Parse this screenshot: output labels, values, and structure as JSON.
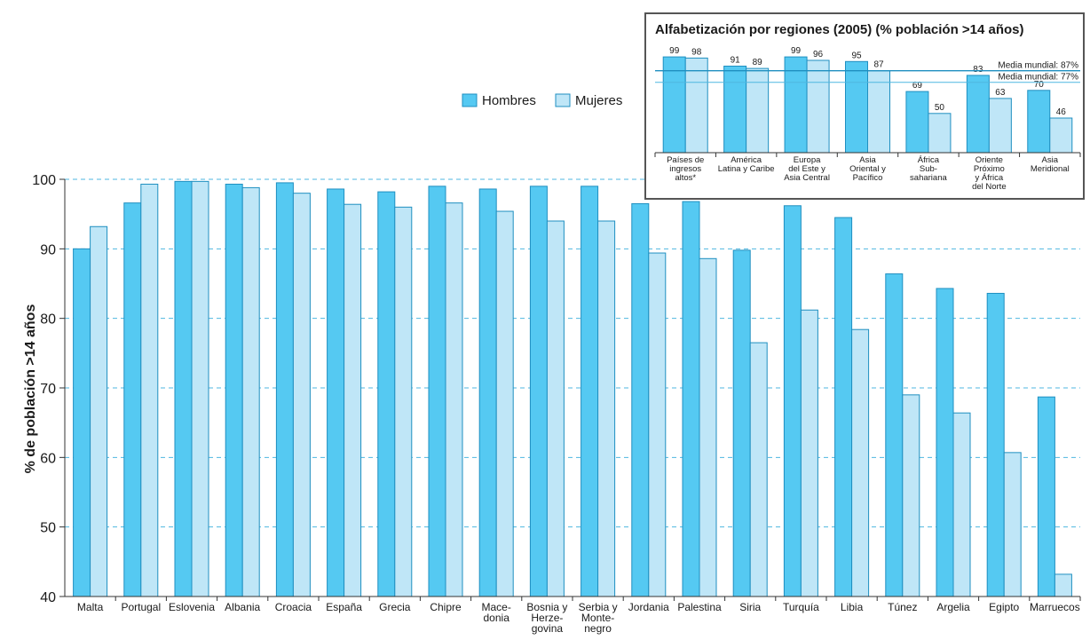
{
  "colors": {
    "men": "#55c9f2",
    "women": "#bfe6f7",
    "stroke": "#1f8fc0",
    "grid": "#4fb7e0",
    "axis": "#333333"
  },
  "chart_data": [
    {
      "type": "bar",
      "title": "",
      "xlabel": "",
      "ylabel": "% de población >14 años",
      "ylim": [
        40,
        100
      ],
      "yticks": [
        40,
        50,
        60,
        70,
        80,
        90,
        100
      ],
      "grid": true,
      "legend": "top-center",
      "categories": [
        [
          "Malta"
        ],
        [
          "Portugal"
        ],
        [
          "Eslovenia"
        ],
        [
          "Albania"
        ],
        [
          "Croacia"
        ],
        [
          "España"
        ],
        [
          "Grecia"
        ],
        [
          "Chipre"
        ],
        [
          "Mace-",
          "donia"
        ],
        [
          "Bosnia y",
          "Herze-",
          "govina"
        ],
        [
          "Serbia y",
          "Monte-",
          "negro"
        ],
        [
          "Jordania"
        ],
        [
          "Palestina"
        ],
        [
          "Siria"
        ],
        [
          "Turquía"
        ],
        [
          "Libia"
        ],
        [
          "Túnez"
        ],
        [
          "Argelia"
        ],
        [
          "Egipto"
        ],
        [
          "Marruecos"
        ]
      ],
      "series": [
        {
          "name": "Hombres",
          "values": [
            90,
            96.6,
            99.7,
            99.3,
            99.5,
            98.6,
            98.2,
            99.0,
            98.6,
            99.0,
            99.0,
            96.5,
            96.8,
            89.8,
            96.2,
            94.5,
            86.4,
            84.3,
            83.6,
            68.7
          ]
        },
        {
          "name": "Mujeres",
          "values": [
            93.2,
            99.3,
            99.7,
            98.8,
            98.0,
            96.4,
            96.0,
            96.6,
            95.4,
            94.0,
            94.0,
            89.4,
            88.6,
            76.5,
            81.2,
            78.4,
            69.0,
            66.4,
            60.7,
            43.2
          ]
        }
      ]
    },
    {
      "type": "bar",
      "title": "Alfabetización por regiones (2005) (% población >14 años)",
      "categories": [
        [
          "Países de",
          "ingresos",
          "altos*"
        ],
        [
          "América",
          "Latina y Caribe"
        ],
        [
          "Europa",
          "del Este y",
          "Asia Central"
        ],
        [
          "Asia",
          "Oriental y",
          "Pacífico"
        ],
        [
          "África",
          "Sub-",
          "sahariana"
        ],
        [
          "Oriente",
          "Próximo",
          "y África",
          "del Norte"
        ],
        [
          "Asia",
          "Meridional"
        ]
      ],
      "series": [
        {
          "name": "Hombres",
          "values": [
            99,
            91,
            99,
            95,
            69,
            83,
            70
          ]
        },
        {
          "name": "Mujeres",
          "values": [
            98,
            89,
            96,
            87,
            50,
            63,
            46
          ]
        }
      ],
      "reference_lines": [
        {
          "label": "Media mundial: 87%",
          "value": 87
        },
        {
          "label": "Media mundial: 77%",
          "value": 77
        }
      ]
    }
  ]
}
